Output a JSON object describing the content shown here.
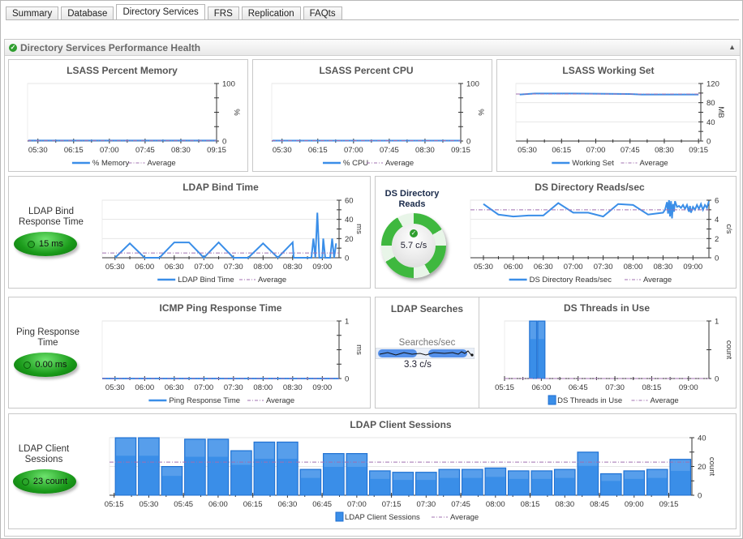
{
  "tabs": [
    "Summary",
    "Database",
    "Directory Services",
    "FRS",
    "Replication",
    "FAQts"
  ],
  "active_tab": "Directory Services",
  "panel": {
    "title": "Directory Services Performance Health",
    "status_icon": "check-circle-icon"
  },
  "colors": {
    "series": "#3a8ee8",
    "average": "#a070b0",
    "gauge_green": "#1a9a1a"
  },
  "gauges": {
    "ldap_bind": {
      "label": "LDAP Bind Response Time",
      "value": "15 ms"
    },
    "ping": {
      "label": "Ping Response Time",
      "value": "0.00 ms"
    },
    "client_sessions": {
      "label": "LDAP Client Sessions",
      "value": "23 count"
    },
    "ds_reads": {
      "label": "DS Directory Reads",
      "value": "5.7 c/s"
    },
    "ldap_searches": {
      "title": "LDAP Searches",
      "label": "Searches/sec",
      "value": "3.3 c/s"
    }
  },
  "chart_data": [
    {
      "id": "mem",
      "type": "line",
      "title": "LSASS Percent Memory",
      "ylabel": "%",
      "ylim": [
        0,
        100
      ],
      "y_ticks": [
        0,
        100
      ],
      "y_minor": 4,
      "xlim": [
        "05:17",
        "09:15"
      ],
      "x_ticks": [
        "05:30",
        "06:15",
        "07:00",
        "07:45",
        "08:30",
        "09:15"
      ],
      "legend": [
        "% Memory",
        "Average"
      ],
      "points": [
        [
          "05:18",
          0.8
        ],
        [
          "09:15",
          0.8
        ]
      ],
      "average": 0.8
    },
    {
      "id": "cpu",
      "type": "line",
      "title": "LSASS Percent CPU",
      "ylabel": "%",
      "ylim": [
        0,
        100
      ],
      "y_ticks": [
        0,
        100
      ],
      "y_minor": 4,
      "xlim": [
        "05:17",
        "09:15"
      ],
      "x_ticks": [
        "05:30",
        "06:15",
        "07:00",
        "07:45",
        "08:30",
        "09:15"
      ],
      "legend": [
        "% CPU",
        "Average"
      ],
      "points": [
        [
          "05:18",
          0.7
        ],
        [
          "09:15",
          0.7
        ]
      ],
      "average": 0.7
    },
    {
      "id": "ws",
      "type": "line",
      "title": "LSASS Working Set",
      "ylabel": "MB",
      "ylim": [
        0,
        120
      ],
      "y_ticks": [
        0,
        40,
        80,
        120
      ],
      "y_minor": 6,
      "xlim": [
        "05:15",
        "09:18"
      ],
      "x_ticks": [
        "05:30",
        "06:15",
        "07:00",
        "07:45",
        "08:30",
        "09:15"
      ],
      "legend": [
        "Working Set",
        "Average"
      ],
      "points": [
        [
          "05:20",
          97
        ],
        [
          "05:40",
          99
        ],
        [
          "06:30",
          99
        ],
        [
          "07:45",
          98
        ],
        [
          "08:00",
          97
        ],
        [
          "09:15",
          97
        ]
      ],
      "average": 98
    },
    {
      "id": "bind",
      "type": "line",
      "title": "LDAP Bind Time",
      "ylabel": "ms",
      "ylim": [
        0,
        60
      ],
      "y_ticks": [
        0,
        20,
        40,
        60
      ],
      "y_minor": 6,
      "xlim": [
        "05:17",
        "09:17"
      ],
      "x_ticks": [
        "05:30",
        "06:00",
        "06:30",
        "07:00",
        "07:30",
        "08:00",
        "08:30",
        "09:00"
      ],
      "legend": [
        "LDAP Bind Time",
        "Average"
      ],
      "points": [
        [
          "05:30",
          0
        ],
        [
          "05:45",
          15
        ],
        [
          "06:00",
          0
        ],
        [
          "06:15",
          0
        ],
        [
          "06:30",
          16
        ],
        [
          "06:45",
          16
        ],
        [
          "07:00",
          0
        ],
        [
          "07:15",
          16
        ],
        [
          "07:30",
          0
        ],
        [
          "07:45",
          0
        ],
        [
          "08:00",
          15
        ],
        [
          "08:15",
          0
        ],
        [
          "08:30",
          16
        ],
        [
          "08:31",
          0
        ],
        [
          "08:49",
          0
        ],
        [
          "08:51",
          20
        ],
        [
          "08:53",
          0
        ],
        [
          "08:55",
          47
        ],
        [
          "08:57",
          0
        ],
        [
          "09:00",
          0
        ],
        [
          "09:01",
          20
        ],
        [
          "09:03",
          0
        ],
        [
          "09:08",
          0
        ],
        [
          "09:10",
          20
        ],
        [
          "09:12",
          0
        ],
        [
          "09:14",
          15
        ]
      ],
      "average": 5
    },
    {
      "id": "reads",
      "type": "line",
      "title": "DS Directory Reads/sec",
      "ylabel": "c/s",
      "ylim": [
        0,
        6
      ],
      "y_ticks": [
        0,
        2,
        4,
        6
      ],
      "y_minor": 6,
      "xlim": [
        "05:17",
        "09:16"
      ],
      "x_ticks": [
        "05:30",
        "06:00",
        "06:30",
        "07:00",
        "07:30",
        "08:00",
        "08:30",
        "09:00"
      ],
      "legend": [
        "DS Directory Reads/sec",
        "Average"
      ],
      "points": [
        [
          "05:30",
          5.6
        ],
        [
          "05:45",
          4.5
        ],
        [
          "06:00",
          4.3
        ],
        [
          "06:15",
          4.4
        ],
        [
          "06:30",
          4.4
        ],
        [
          "06:45",
          5.7
        ],
        [
          "07:00",
          4.7
        ],
        [
          "07:15",
          4.7
        ],
        [
          "07:30",
          4.3
        ],
        [
          "07:45",
          5.6
        ],
        [
          "08:00",
          5.5
        ],
        [
          "08:15",
          4.5
        ],
        [
          "08:30",
          4.7
        ],
        [
          "08:32",
          5.0
        ],
        [
          "08:34",
          5.8
        ],
        [
          "08:35",
          4.6
        ],
        [
          "08:36",
          6.0
        ],
        [
          "08:37",
          4.3
        ],
        [
          "08:38",
          5.9
        ],
        [
          "08:39",
          4.1
        ],
        [
          "08:40",
          5.6
        ],
        [
          "08:41",
          4.8
        ],
        [
          "08:42",
          5.9
        ],
        [
          "08:44",
          5.3
        ],
        [
          "08:46",
          5.4
        ],
        [
          "08:48",
          5.2
        ],
        [
          "08:50",
          5.5
        ],
        [
          "08:52",
          5.1
        ],
        [
          "08:54",
          5.5
        ],
        [
          "08:56",
          4.8
        ],
        [
          "08:57",
          5.4
        ],
        [
          "08:58",
          4.7
        ],
        [
          "09:00",
          5.3
        ],
        [
          "09:02",
          5.0
        ],
        [
          "09:04",
          5.5
        ],
        [
          "09:06",
          5.1
        ],
        [
          "09:08",
          5.6
        ],
        [
          "09:10",
          5.0
        ],
        [
          "09:12",
          5.5
        ],
        [
          "09:14",
          5.2
        ],
        [
          "09:16",
          5.9
        ]
      ],
      "average": 5.0
    },
    {
      "id": "ping",
      "type": "line",
      "title": "ICMP Ping Response Time",
      "ylabel": "ms",
      "ylim": [
        0,
        1
      ],
      "y_ticks": [
        0,
        1
      ],
      "y_minor": 4,
      "xlim": [
        "05:17",
        "09:17"
      ],
      "x_ticks": [
        "05:30",
        "06:00",
        "06:30",
        "07:00",
        "07:30",
        "08:00",
        "08:30",
        "09:00"
      ],
      "legend": [
        "Ping Response Time",
        "Average"
      ],
      "points": [
        [
          "05:17",
          0
        ],
        [
          "09:17",
          0
        ]
      ],
      "average": 0
    },
    {
      "id": "threads",
      "type": "bar",
      "title": "DS Threads in Use",
      "ylabel": "count",
      "ylim": [
        0,
        1
      ],
      "y_ticks": [
        0,
        1
      ],
      "y_minor": 2,
      "xlim": [
        "05:15",
        "09:25"
      ],
      "x_ticks": [
        "05:15",
        "06:00",
        "06:45",
        "07:30",
        "08:15",
        "09:00"
      ],
      "legend": [
        "DS Threads in Use",
        "Average"
      ],
      "points": [
        [
          "05:50",
          1
        ],
        [
          "06:00",
          1
        ]
      ],
      "average": 0
    },
    {
      "id": "sessions",
      "type": "bar",
      "title": "LDAP Client Sessions",
      "ylabel": "count",
      "ylim": [
        0,
        40
      ],
      "y_ticks": [
        0,
        20,
        40
      ],
      "y_minor": 4,
      "xlim": [
        "05:13",
        "09:25"
      ],
      "x_ticks": [
        "05:15",
        "05:30",
        "05:45",
        "06:00",
        "06:15",
        "06:30",
        "06:45",
        "07:00",
        "07:15",
        "07:30",
        "07:45",
        "08:00",
        "08:15",
        "08:30",
        "08:45",
        "09:00",
        "09:15"
      ],
      "legend": [
        "LDAP Client Sessions",
        "Average"
      ],
      "points": [
        [
          "05:20",
          40
        ],
        [
          "05:30",
          40
        ],
        [
          "05:40",
          20
        ],
        [
          "05:50",
          39
        ],
        [
          "06:00",
          39
        ],
        [
          "06:10",
          31
        ],
        [
          "06:20",
          37
        ],
        [
          "06:30",
          37
        ],
        [
          "06:40",
          18
        ],
        [
          "06:50",
          29
        ],
        [
          "07:00",
          29
        ],
        [
          "07:10",
          17
        ],
        [
          "07:20",
          16
        ],
        [
          "07:30",
          16
        ],
        [
          "07:40",
          18
        ],
        [
          "07:50",
          18
        ],
        [
          "08:00",
          19
        ],
        [
          "08:10",
          17
        ],
        [
          "08:20",
          17
        ],
        [
          "08:30",
          18
        ],
        [
          "08:40",
          30
        ],
        [
          "08:50",
          15
        ],
        [
          "09:00",
          17
        ],
        [
          "09:10",
          18
        ],
        [
          "09:20",
          25
        ]
      ],
      "average": 23
    }
  ]
}
